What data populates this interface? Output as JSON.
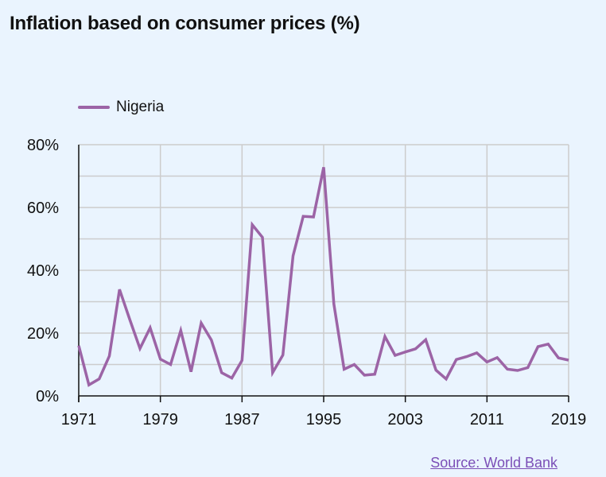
{
  "title": "Inflation based on consumer prices (%)",
  "source": {
    "label": "Source: World Bank",
    "color": "#7b4fb7"
  },
  "colors": {
    "series": "#9c64a6",
    "grid": "#cccccc",
    "axis": "#111111",
    "background": "#eaf4fe"
  },
  "chart_data": {
    "type": "line",
    "title": "Inflation based on consumer prices (%)",
    "xlabel": "",
    "ylabel": "",
    "xlim": [
      1971,
      2019
    ],
    "ylim": [
      0,
      80
    ],
    "x_ticks": [
      "1971",
      "1979",
      "1987",
      "1995",
      "2003",
      "2011",
      "2019"
    ],
    "y_ticks": [
      "0%",
      "20%",
      "40%",
      "60%",
      "80%"
    ],
    "grid": true,
    "legend": "top-left",
    "x": [
      1971,
      1972,
      1973,
      1974,
      1975,
      1976,
      1977,
      1978,
      1979,
      1980,
      1981,
      1982,
      1983,
      1984,
      1985,
      1986,
      1987,
      1988,
      1989,
      1990,
      1991,
      1992,
      1993,
      1994,
      1995,
      1996,
      1997,
      1998,
      1999,
      2000,
      2001,
      2002,
      2003,
      2004,
      2005,
      2006,
      2007,
      2008,
      2009,
      2010,
      2011,
      2012,
      2013,
      2014,
      2015,
      2016,
      2017,
      2018,
      2019
    ],
    "series": [
      {
        "name": "Nigeria",
        "values": [
          16.0,
          3.5,
          5.4,
          12.7,
          33.9,
          24.3,
          15.1,
          21.7,
          11.7,
          10.0,
          20.8,
          7.7,
          23.2,
          17.8,
          7.4,
          5.7,
          11.3,
          54.5,
          50.5,
          7.4,
          13.0,
          44.6,
          57.2,
          57.0,
          72.8,
          29.3,
          8.5,
          10.0,
          6.6,
          6.9,
          18.9,
          12.9,
          14.0,
          15.0,
          17.9,
          8.2,
          5.4,
          11.6,
          12.5,
          13.7,
          10.8,
          12.2,
          8.5,
          8.1,
          9.0,
          15.7,
          16.5,
          12.1,
          11.4
        ]
      }
    ]
  }
}
